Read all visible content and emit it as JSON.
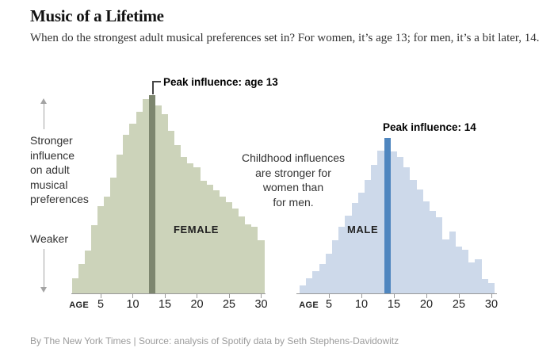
{
  "page": {
    "title": "Music of a Lifetime",
    "subtitle": "When do the strongest adult musical preferences set in? For women, it’s age 13; for men, it’s a bit later, 14.",
    "footer": "By The New York Times | Source: analysis of Spotify data by Seth Stephens-Davidowitz"
  },
  "annotations": {
    "stronger_label": "Stronger\ninfluence\non adult\nmusical\npreferences",
    "weaker_label": "Weaker",
    "center_note": "Childhood influences\nare stronger for\nwomen than\nfor men.",
    "up_arrow": "up-arrow",
    "down_arrow": "down-arrow"
  },
  "colors": {
    "female_fill": "#ccd3ba",
    "female_peak": "#7d866f",
    "male_fill": "#cdd9ea",
    "male_peak": "#4f86bf",
    "axis": "#999999",
    "text": "#333333",
    "footer_text": "#9b9b9b"
  },
  "chart_data": [
    {
      "type": "bar",
      "label": "FEMALE",
      "x_axis_label": "AGE",
      "x_ticks": [
        5,
        10,
        15,
        20,
        25,
        30
      ],
      "ages": [
        1,
        2,
        3,
        4,
        5,
        6,
        7,
        8,
        9,
        10,
        11,
        12,
        13,
        14,
        15,
        16,
        17,
        18,
        19,
        20,
        21,
        22,
        23,
        24,
        25,
        26,
        27,
        28,
        29,
        30
      ],
      "values_relative": [
        7.5,
        15,
        21.5,
        34.5,
        44,
        49,
        58.5,
        70,
        80,
        85.5,
        91.5,
        98,
        100,
        95,
        90.5,
        82,
        75,
        69,
        65.5,
        63.5,
        57,
        55,
        52,
        49,
        46,
        43,
        39,
        35,
        33.5,
        27
      ],
      "ylabel": "Influence on adult musical preferences (stronger = taller)",
      "ylim_note": "relative scale 0-100, no numeric y axis shown",
      "highlight_age": 13,
      "annotation": "Peak influence: age 13",
      "bar_color": "#ccd3ba",
      "highlight_color": "#7d866f",
      "legend_position": "inside"
    },
    {
      "type": "bar",
      "label": "MALE",
      "x_axis_label": "AGE",
      "x_ticks": [
        5,
        10,
        15,
        20,
        25,
        30
      ],
      "ages": [
        1,
        2,
        3,
        4,
        5,
        6,
        7,
        8,
        9,
        10,
        11,
        12,
        13,
        14,
        15,
        16,
        17,
        18,
        19,
        20,
        21,
        22,
        23,
        24,
        25,
        26,
        27,
        28,
        29,
        30
      ],
      "values_relative": [
        5,
        9.5,
        14.5,
        19,
        25.5,
        34,
        43,
        50,
        58,
        65,
        73,
        82.5,
        92,
        100,
        91.5,
        88,
        81,
        73,
        67,
        59,
        53,
        49,
        34.5,
        40,
        30,
        28,
        20,
        22,
        9,
        6.5
      ],
      "ylabel": "Influence on adult musical preferences (stronger = taller)",
      "ylim_note": "relative scale 0-100, peak drawn lower than female peak",
      "highlight_age": 14,
      "annotation": "Peak influence: 14",
      "bar_color": "#cdd9ea",
      "highlight_color": "#4f86bf",
      "legend_position": "inside"
    }
  ]
}
